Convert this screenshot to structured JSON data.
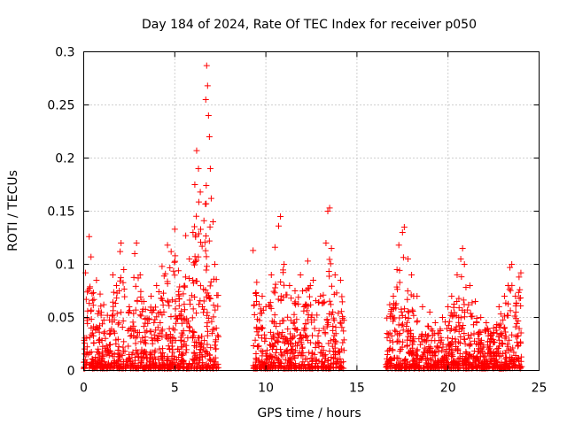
{
  "chart_data": {
    "type": "scatter",
    "title": "Day 184 of 2024, Rate Of TEC Index for receiver p050",
    "xlabel": "GPS time / hours",
    "ylabel": "ROTI / TECUs",
    "xlim": [
      0,
      25
    ],
    "ylim": [
      0,
      0.3
    ],
    "xticks": [
      0,
      5,
      10,
      15,
      20,
      25
    ],
    "xtick_labels": [
      "0",
      "5",
      "10",
      "15",
      "20",
      "25"
    ],
    "yticks": [
      0,
      0.05,
      0.1,
      0.15,
      0.2,
      0.25,
      0.3
    ],
    "ytick_labels": [
      "0",
      "0.05",
      "0.1",
      "0.15",
      "0.2",
      "0.25",
      "0.3"
    ],
    "grid": true,
    "marker": "+",
    "color": "#ff0000",
    "data_gaps_hours": [
      [
        7.4,
        9.3
      ],
      [
        14.3,
        16.6
      ]
    ],
    "series": [
      {
        "name": "ROTI",
        "points": [
          [
            0.1,
            0.092
          ],
          [
            0.2,
            0.074
          ],
          [
            0.3,
            0.126
          ],
          [
            0.4,
            0.107
          ],
          [
            0.7,
            0.085
          ],
          [
            0.9,
            0.072
          ],
          [
            1.1,
            0.062
          ],
          [
            1.3,
            0.052
          ],
          [
            1.6,
            0.09
          ],
          [
            1.8,
            0.08
          ],
          [
            2.0,
            0.112
          ],
          [
            2.05,
            0.12
          ],
          [
            2.2,
            0.095
          ],
          [
            2.5,
            0.06
          ],
          [
            2.8,
            0.11
          ],
          [
            2.9,
            0.12
          ],
          [
            3.1,
            0.09
          ],
          [
            3.3,
            0.065
          ],
          [
            3.7,
            0.07
          ],
          [
            4.0,
            0.08
          ],
          [
            4.3,
            0.098
          ],
          [
            4.6,
            0.118
          ],
          [
            4.8,
            0.112
          ],
          [
            5.0,
            0.133
          ],
          [
            5.2,
            0.094
          ],
          [
            5.6,
            0.127
          ],
          [
            5.8,
            0.105
          ],
          [
            6.0,
            0.13
          ],
          [
            6.1,
            0.175
          ],
          [
            6.2,
            0.207
          ],
          [
            6.3,
            0.19
          ],
          [
            6.4,
            0.168
          ],
          [
            6.5,
            0.117
          ],
          [
            6.6,
            0.141
          ],
          [
            6.7,
            0.255
          ],
          [
            6.75,
            0.287
          ],
          [
            6.8,
            0.268
          ],
          [
            6.85,
            0.24
          ],
          [
            6.9,
            0.22
          ],
          [
            6.95,
            0.19
          ],
          [
            7.0,
            0.162
          ],
          [
            7.1,
            0.14
          ],
          [
            7.2,
            0.1
          ],
          [
            9.3,
            0.113
          ],
          [
            9.5,
            0.083
          ],
          [
            9.8,
            0.07
          ],
          [
            10.0,
            0.06
          ],
          [
            10.3,
            0.09
          ],
          [
            10.5,
            0.116
          ],
          [
            10.7,
            0.136
          ],
          [
            10.8,
            0.145
          ],
          [
            11.0,
            0.1
          ],
          [
            11.3,
            0.08
          ],
          [
            11.6,
            0.075
          ],
          [
            11.9,
            0.09
          ],
          [
            12.3,
            0.103
          ],
          [
            12.6,
            0.085
          ],
          [
            13.0,
            0.07
          ],
          [
            13.3,
            0.12
          ],
          [
            13.4,
            0.15
          ],
          [
            13.5,
            0.153
          ],
          [
            13.6,
            0.115
          ],
          [
            13.8,
            0.09
          ],
          [
            14.1,
            0.085
          ],
          [
            16.8,
            0.062
          ],
          [
            17.0,
            0.07
          ],
          [
            17.2,
            0.095
          ],
          [
            17.3,
            0.118
          ],
          [
            17.5,
            0.13
          ],
          [
            17.6,
            0.135
          ],
          [
            17.8,
            0.105
          ],
          [
            18.0,
            0.09
          ],
          [
            18.3,
            0.07
          ],
          [
            18.6,
            0.06
          ],
          [
            19.0,
            0.055
          ],
          [
            19.3,
            0.045
          ],
          [
            19.7,
            0.05
          ],
          [
            20.0,
            0.06
          ],
          [
            20.2,
            0.07
          ],
          [
            20.5,
            0.09
          ],
          [
            20.7,
            0.105
          ],
          [
            20.8,
            0.115
          ],
          [
            20.9,
            0.1
          ],
          [
            21.2,
            0.08
          ],
          [
            21.5,
            0.065
          ],
          [
            21.8,
            0.05
          ],
          [
            22.1,
            0.045
          ],
          [
            22.5,
            0.04
          ],
          [
            22.8,
            0.06
          ],
          [
            23.1,
            0.07
          ],
          [
            23.3,
            0.08
          ],
          [
            23.4,
            0.097
          ],
          [
            23.5,
            0.1
          ],
          [
            23.7,
            0.07
          ],
          [
            23.9,
            0.088
          ],
          [
            24.0,
            0.092
          ]
        ]
      }
    ]
  }
}
